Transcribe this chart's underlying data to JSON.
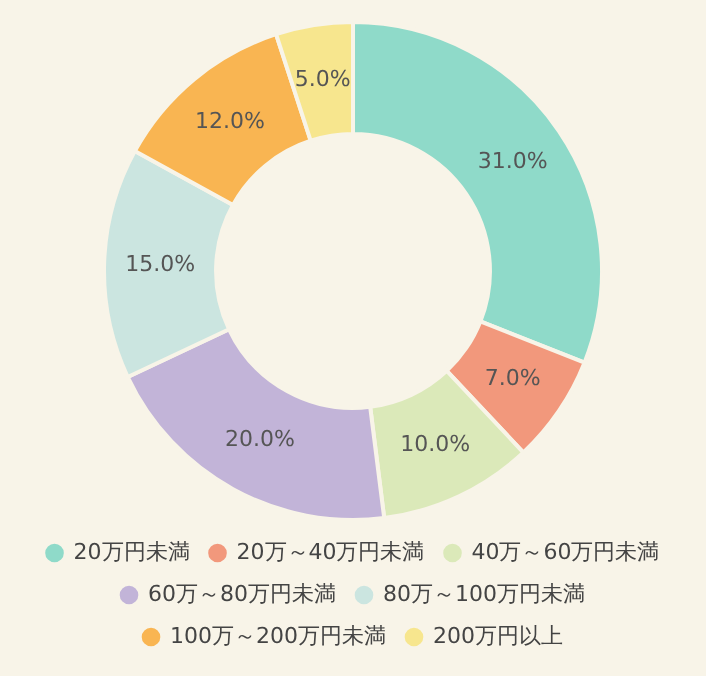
{
  "chart_data": {
    "type": "donut",
    "categories": [
      "20万円未満",
      "20万～40万円未満",
      "40万～60万円未満",
      "60万～80万円未満",
      "80万～100万円未満",
      "100万～200万円未満",
      "200万円以上"
    ],
    "values": [
      31.0,
      7.0,
      10.0,
      20.0,
      15.0,
      12.0,
      5.0
    ],
    "colors": [
      "#8fdac9",
      "#f2987c",
      "#dbe9b9",
      "#c2b4d8",
      "#cbe5e0",
      "#f9b552",
      "#f7e68e"
    ],
    "value_labels": [
      "31.0%",
      "7.0%",
      "10.0%",
      "20.0%",
      "15.0%",
      "12.0%",
      "5.0%"
    ],
    "legend": "bottom"
  }
}
